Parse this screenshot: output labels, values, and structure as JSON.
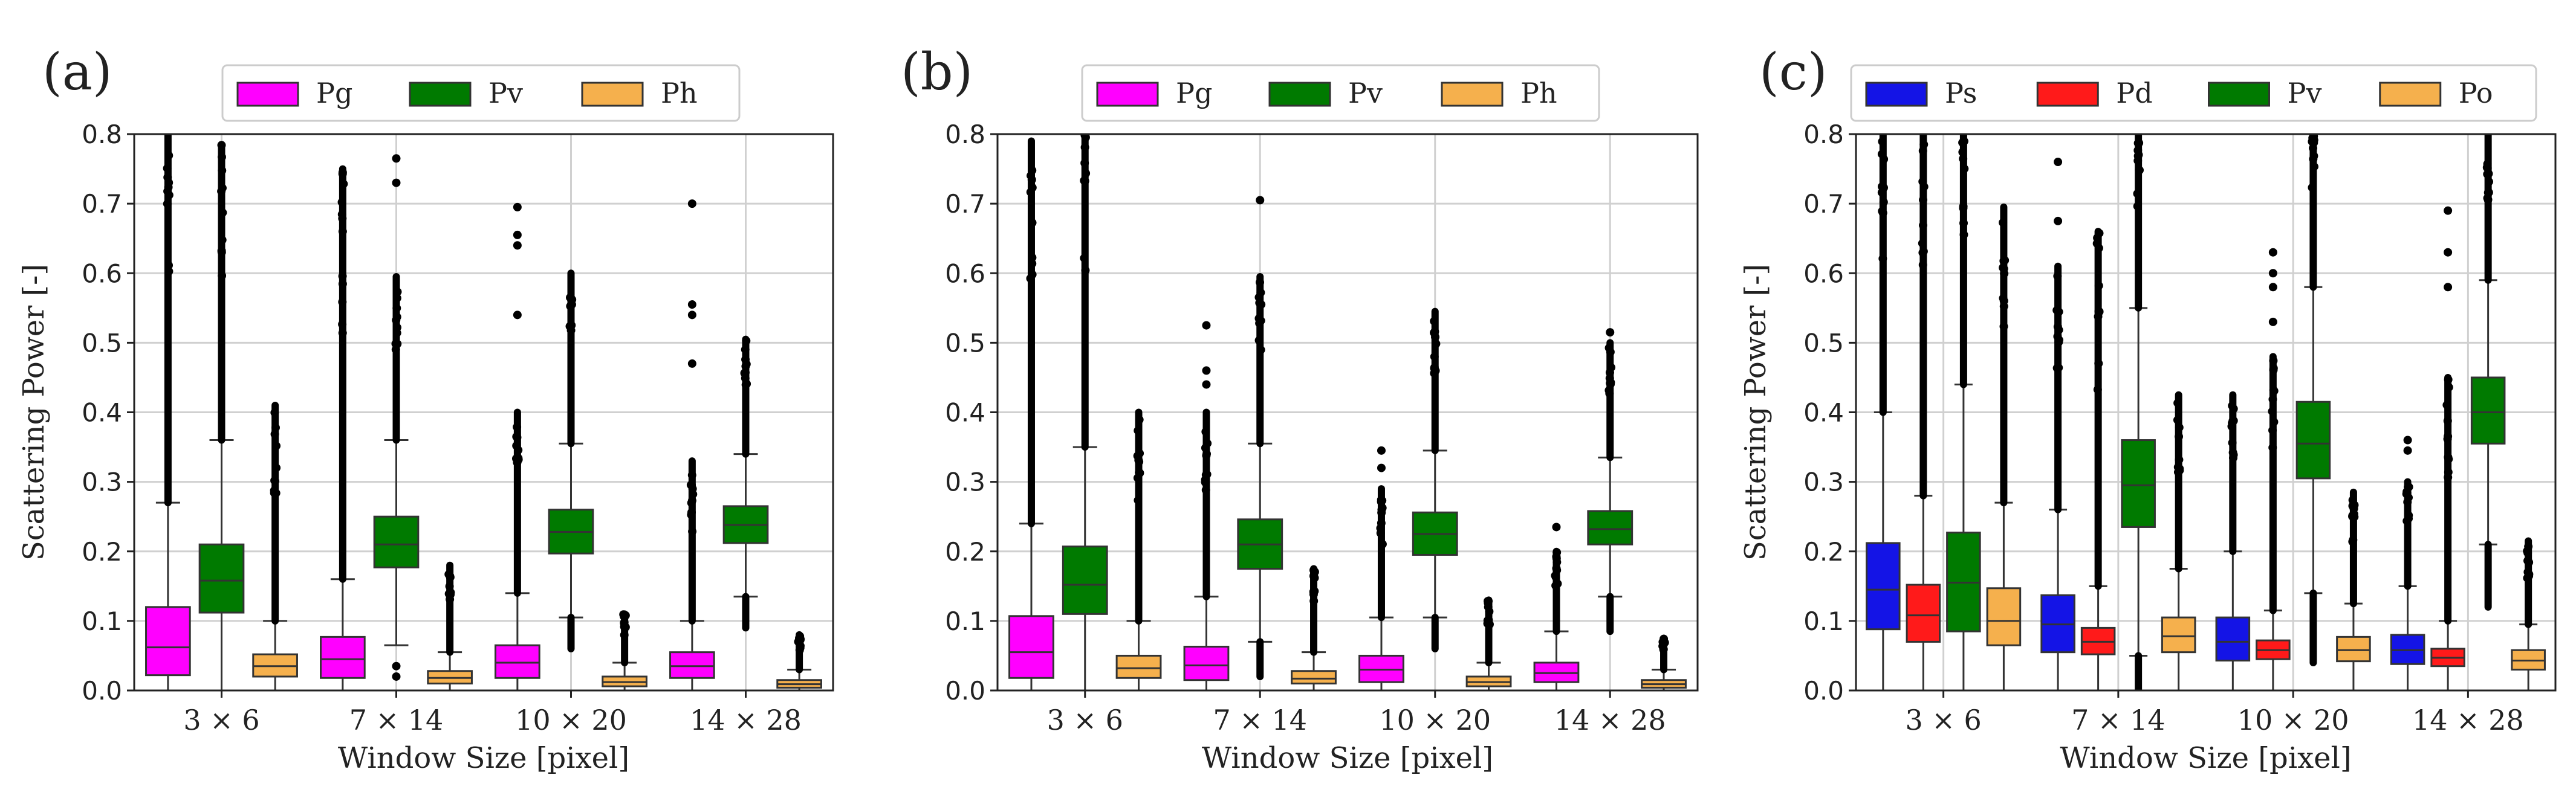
{
  "chart_data": [
    {
      "panel_label": "(a)",
      "type": "box",
      "xlabel": "Window Size [pixel]",
      "ylabel": "Scattering Power [-]",
      "ylim": [
        0,
        0.8
      ],
      "yticks": [
        "0.0",
        "0.1",
        "0.2",
        "0.3",
        "0.4",
        "0.5",
        "0.6",
        "0.7",
        "0.8"
      ],
      "grid": true,
      "legend_position": "top",
      "categories": [
        "3 × 6",
        "7 × 14",
        "10 × 20",
        "14 × 28"
      ],
      "series": [
        {
          "name": "Pg",
          "color": "#ff00ff",
          "boxes": [
            {
              "q1": 0.022,
              "median": 0.062,
              "q3": 0.12,
              "whisker_low": 0.0,
              "whisker_high": 0.27,
              "outliers_to": 0.8
            },
            {
              "q1": 0.018,
              "median": 0.045,
              "q3": 0.077,
              "whisker_low": 0.0,
              "whisker_high": 0.16,
              "outliers_to": 0.75,
              "sparse_outliers": [
                0.66,
                0.745
              ]
            },
            {
              "q1": 0.018,
              "median": 0.04,
              "q3": 0.065,
              "whisker_low": 0.0,
              "whisker_high": 0.14,
              "outliers_to": 0.4,
              "sparse_outliers": [
                0.54,
                0.64,
                0.655,
                0.695
              ]
            },
            {
              "q1": 0.018,
              "median": 0.035,
              "q3": 0.055,
              "whisker_low": 0.0,
              "whisker_high": 0.1,
              "outliers_to": 0.33,
              "sparse_outliers": [
                0.47,
                0.54,
                0.555,
                0.7
              ]
            }
          ]
        },
        {
          "name": "Pv",
          "color": "#007a00",
          "boxes": [
            {
              "q1": 0.112,
              "median": 0.158,
              "q3": 0.21,
              "whisker_low": 0.0,
              "whisker_high": 0.36,
              "outliers_to": 0.785
            },
            {
              "q1": 0.177,
              "median": 0.21,
              "q3": 0.25,
              "whisker_low": 0.065,
              "whisker_high": 0.36,
              "outliers_to": 0.595,
              "sparse_outliers": [
                0.02,
                0.035,
                0.73,
                0.765
              ]
            },
            {
              "q1": 0.197,
              "median": 0.228,
              "q3": 0.26,
              "whisker_low": 0.105,
              "whisker_high": 0.355,
              "outliers_to": 0.6,
              "low_outliers_to": 0.06
            },
            {
              "q1": 0.212,
              "median": 0.238,
              "q3": 0.265,
              "whisker_low": 0.135,
              "whisker_high": 0.34,
              "outliers_to": 0.505,
              "low_outliers_to": 0.09
            }
          ]
        },
        {
          "name": "Ph",
          "color": "#f5b04d",
          "boxes": [
            {
              "q1": 0.02,
              "median": 0.035,
              "q3": 0.052,
              "whisker_low": 0.0,
              "whisker_high": 0.1,
              "outliers_to": 0.41
            },
            {
              "q1": 0.01,
              "median": 0.018,
              "q3": 0.028,
              "whisker_low": 0.0,
              "whisker_high": 0.055,
              "outliers_to": 0.18
            },
            {
              "q1": 0.006,
              "median": 0.012,
              "q3": 0.02,
              "whisker_low": 0.0,
              "whisker_high": 0.04,
              "outliers_to": 0.11
            },
            {
              "q1": 0.004,
              "median": 0.009,
              "q3": 0.015,
              "whisker_low": 0.0,
              "whisker_high": 0.03,
              "outliers_to": 0.08
            }
          ]
        }
      ]
    },
    {
      "panel_label": "(b)",
      "type": "box",
      "xlabel": "Window Size [pixel]",
      "ylabel": "",
      "ylim": [
        0,
        0.8
      ],
      "yticks": [
        "0.0",
        "0.1",
        "0.2",
        "0.3",
        "0.4",
        "0.5",
        "0.6",
        "0.7",
        "0.8"
      ],
      "grid": true,
      "legend_position": "top",
      "categories": [
        "3 × 6",
        "7 × 14",
        "10 × 20",
        "14 × 28"
      ],
      "series": [
        {
          "name": "Pg",
          "color": "#ff00ff",
          "boxes": [
            {
              "q1": 0.018,
              "median": 0.055,
              "q3": 0.107,
              "whisker_low": 0.0,
              "whisker_high": 0.24,
              "outliers_to": 0.79
            },
            {
              "q1": 0.015,
              "median": 0.036,
              "q3": 0.063,
              "whisker_low": 0.0,
              "whisker_high": 0.135,
              "outliers_to": 0.4,
              "sparse_outliers": [
                0.44,
                0.46,
                0.525
              ]
            },
            {
              "q1": 0.012,
              "median": 0.03,
              "q3": 0.05,
              "whisker_low": 0.0,
              "whisker_high": 0.105,
              "outliers_to": 0.29,
              "sparse_outliers": [
                0.32,
                0.345
              ]
            },
            {
              "q1": 0.012,
              "median": 0.025,
              "q3": 0.04,
              "whisker_low": 0.0,
              "whisker_high": 0.085,
              "outliers_to": 0.2,
              "sparse_outliers": [
                0.235
              ]
            }
          ]
        },
        {
          "name": "Pv",
          "color": "#007a00",
          "boxes": [
            {
              "q1": 0.11,
              "median": 0.152,
              "q3": 0.207,
              "whisker_low": 0.0,
              "whisker_high": 0.35,
              "outliers_to": 0.8
            },
            {
              "q1": 0.175,
              "median": 0.21,
              "q3": 0.246,
              "whisker_low": 0.07,
              "whisker_high": 0.355,
              "outliers_to": 0.595,
              "low_outliers_to": 0.02,
              "sparse_outliers": [
                0.705
              ]
            },
            {
              "q1": 0.195,
              "median": 0.225,
              "q3": 0.256,
              "whisker_low": 0.105,
              "whisker_high": 0.345,
              "outliers_to": 0.545,
              "low_outliers_to": 0.06
            },
            {
              "q1": 0.21,
              "median": 0.232,
              "q3": 0.258,
              "whisker_low": 0.135,
              "whisker_high": 0.335,
              "outliers_to": 0.5,
              "low_outliers_to": 0.085,
              "sparse_outliers": [
                0.515
              ]
            }
          ]
        },
        {
          "name": "Ph",
          "color": "#f5b04d",
          "boxes": [
            {
              "q1": 0.018,
              "median": 0.032,
              "q3": 0.05,
              "whisker_low": 0.0,
              "whisker_high": 0.1,
              "outliers_to": 0.4
            },
            {
              "q1": 0.01,
              "median": 0.017,
              "q3": 0.028,
              "whisker_low": 0.0,
              "whisker_high": 0.055,
              "outliers_to": 0.175
            },
            {
              "q1": 0.006,
              "median": 0.012,
              "q3": 0.02,
              "whisker_low": 0.0,
              "whisker_high": 0.04,
              "outliers_to": 0.13
            },
            {
              "q1": 0.004,
              "median": 0.009,
              "q3": 0.015,
              "whisker_low": 0.0,
              "whisker_high": 0.03,
              "outliers_to": 0.075
            }
          ]
        }
      ]
    },
    {
      "panel_label": "(c)",
      "type": "box",
      "xlabel": "Window Size [pixel]",
      "ylabel": "Scattering Power [-]",
      "ylim": [
        0,
        0.8
      ],
      "yticks": [
        "0.0",
        "0.1",
        "0.2",
        "0.3",
        "0.4",
        "0.5",
        "0.6",
        "0.7",
        "0.8"
      ],
      "grid": true,
      "legend_position": "top",
      "categories": [
        "3 × 6",
        "7 × 14",
        "10 × 20",
        "14 × 28"
      ],
      "series": [
        {
          "name": "Ps",
          "color": "#1414e6",
          "boxes": [
            {
              "q1": 0.088,
              "median": 0.145,
              "q3": 0.212,
              "whisker_low": 0.0,
              "whisker_high": 0.4,
              "outliers_to": 0.8
            },
            {
              "q1": 0.055,
              "median": 0.095,
              "q3": 0.137,
              "whisker_low": 0.0,
              "whisker_high": 0.26,
              "outliers_to": 0.61,
              "sparse_outliers": [
                0.675,
                0.76
              ]
            },
            {
              "q1": 0.043,
              "median": 0.07,
              "q3": 0.105,
              "whisker_low": 0.0,
              "whisker_high": 0.2,
              "outliers_to": 0.425
            },
            {
              "q1": 0.038,
              "median": 0.058,
              "q3": 0.08,
              "whisker_low": 0.0,
              "whisker_high": 0.15,
              "outliers_to": 0.3,
              "sparse_outliers": [
                0.345,
                0.36
              ]
            }
          ]
        },
        {
          "name": "Pd",
          "color": "#ff1a1a",
          "boxes": [
            {
              "q1": 0.07,
              "median": 0.108,
              "q3": 0.152,
              "whisker_low": 0.0,
              "whisker_high": 0.28,
              "outliers_to": 0.8
            },
            {
              "q1": 0.052,
              "median": 0.07,
              "q3": 0.09,
              "whisker_low": 0.0,
              "whisker_high": 0.15,
              "outliers_to": 0.66
            },
            {
              "q1": 0.045,
              "median": 0.058,
              "q3": 0.072,
              "whisker_low": 0.0,
              "whisker_high": 0.115,
              "outliers_to": 0.48,
              "sparse_outliers": [
                0.53,
                0.58,
                0.6,
                0.63
              ]
            },
            {
              "q1": 0.035,
              "median": 0.047,
              "q3": 0.06,
              "whisker_low": 0.0,
              "whisker_high": 0.1,
              "outliers_to": 0.45,
              "sparse_outliers": [
                0.58,
                0.63,
                0.69
              ]
            }
          ]
        },
        {
          "name": "Pv",
          "color": "#007a00",
          "boxes": [
            {
              "q1": 0.085,
              "median": 0.155,
              "q3": 0.227,
              "whisker_low": 0.0,
              "whisker_high": 0.44,
              "outliers_to": 0.8
            },
            {
              "q1": 0.235,
              "median": 0.295,
              "q3": 0.36,
              "whisker_low": 0.05,
              "whisker_high": 0.55,
              "outliers_to": 0.8,
              "low_outliers_to": 0.0
            },
            {
              "q1": 0.305,
              "median": 0.355,
              "q3": 0.415,
              "whisker_low": 0.14,
              "whisker_high": 0.58,
              "outliers_to": 0.8,
              "low_outliers_to": 0.04
            },
            {
              "q1": 0.355,
              "median": 0.4,
              "q3": 0.45,
              "whisker_low": 0.21,
              "whisker_high": 0.59,
              "outliers_to": 0.8,
              "low_outliers_to": 0.12
            }
          ]
        },
        {
          "name": "Po",
          "color": "#f5b04d",
          "boxes": [
            {
              "q1": 0.065,
              "median": 0.1,
              "q3": 0.147,
              "whisker_low": 0.0,
              "whisker_high": 0.27,
              "outliers_to": 0.695
            },
            {
              "q1": 0.055,
              "median": 0.078,
              "q3": 0.105,
              "whisker_low": 0.0,
              "whisker_high": 0.175,
              "outliers_to": 0.425
            },
            {
              "q1": 0.042,
              "median": 0.058,
              "q3": 0.077,
              "whisker_low": 0.0,
              "whisker_high": 0.125,
              "outliers_to": 0.285
            },
            {
              "q1": 0.03,
              "median": 0.043,
              "q3": 0.058,
              "whisker_low": 0.0,
              "whisker_high": 0.095,
              "outliers_to": 0.215
            }
          ]
        }
      ]
    }
  ]
}
